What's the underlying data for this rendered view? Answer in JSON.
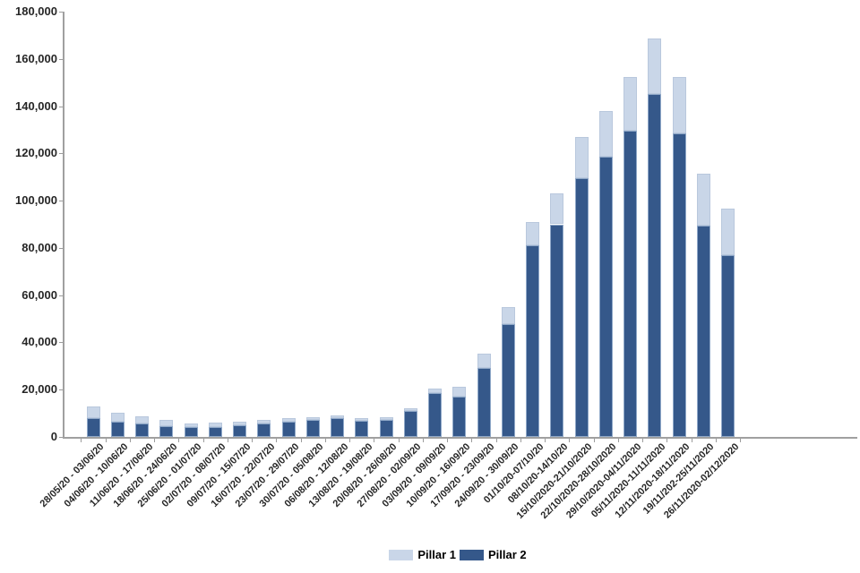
{
  "chart_data": {
    "type": "bar",
    "stacked": true,
    "title": "",
    "xlabel": "",
    "ylabel": "",
    "grid": false,
    "legend_position": "bottom-center",
    "ylim": [
      0,
      180000
    ],
    "ytick_step": 20000,
    "ytick_labels": [
      "0",
      "20,000",
      "40,000",
      "60,000",
      "80,000",
      "100,000",
      "120,000",
      "140,000",
      "160,000",
      "180,000"
    ],
    "categories": [
      "28/05/20 - 03/06/20",
      "04/06/20 - 10/06/20",
      "11/06/20 - 17/06/20",
      "18/06/20 - 24/06/20",
      "25/06/20 - 01/07/20",
      "02/07/20 - 08/07/20",
      "09/07/20 - 15/07/20",
      "16/07/20 - 22/07/20",
      "23/07/20 - 29/07/20",
      "30/07/20 - 05/08/20",
      "06/08/20 - 12/08/20",
      "13/08/20 - 19/08/20",
      "20/08/20 - 26/08/20",
      "27/08/20 - 02/09/20",
      "03/09/20 - 09/09/20",
      "10/09/20 - 16/09/20",
      "17/09/20 - 23/09/20",
      "24/09/20 - 30/09/20",
      "01/10/20-07/10/20",
      "08/10/20-14/10/20",
      "15/10/2020-21/10/2020",
      "22/10/2020-28/10/2020",
      "29/10/2020-04/11/2020",
      "05/11/2020-11/11/2020",
      "12/11/2020-18/11/2020",
      "19/11/202-25/11/2020",
      "26/11/2020-02/12/2020"
    ],
    "series": [
      {
        "name": "Pillar 1",
        "color": "#c9d6e8",
        "stack_order": "top",
        "values": [
          5000,
          3700,
          3100,
          2600,
          1800,
          1600,
          1600,
          1500,
          1400,
          1300,
          1200,
          1000,
          1100,
          1000,
          1900,
          4400,
          6200,
          7200,
          10000,
          13000,
          17500,
          19500,
          23000,
          23500,
          24000,
          22000,
          19500
        ]
      },
      {
        "name": "Pillar 2",
        "color": "#35588a",
        "stack_order": "bottom",
        "values": [
          7800,
          6500,
          5500,
          4700,
          4000,
          4300,
          4900,
          5600,
          6500,
          7200,
          7900,
          6900,
          7200,
          11000,
          18600,
          17000,
          29000,
          47700,
          81000,
          90000,
          109500,
          118500,
          129500,
          145000,
          128500,
          89500,
          77000
        ]
      }
    ]
  },
  "legend": {
    "items": [
      {
        "label": "Pillar 1",
        "color": "#c9d6e8"
      },
      {
        "label": "Pillar 2",
        "color": "#35588a"
      }
    ]
  },
  "colors": {
    "pillar1": "#c9d6e8",
    "pillar2": "#35588a",
    "axis": "#a0a0a0",
    "text": "#262626",
    "background": "#ffffff"
  }
}
